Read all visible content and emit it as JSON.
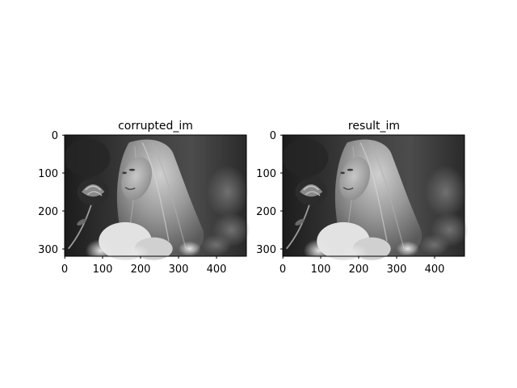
{
  "figure": {
    "panels": [
      {
        "title": "corrupted_im",
        "x_ticks": [
          "0",
          "100",
          "200",
          "300",
          "400"
        ],
        "y_ticks": [
          "0",
          "100",
          "200",
          "300"
        ]
      },
      {
        "title": "result_im",
        "x_ticks": [
          "0",
          "100",
          "200",
          "300",
          "400"
        ],
        "y_ticks": [
          "0",
          "100",
          "200",
          "300"
        ]
      }
    ],
    "image_description": "grayscale photo: woman with long hair holding a rose, dark blurred background",
    "colormap": "gray"
  }
}
